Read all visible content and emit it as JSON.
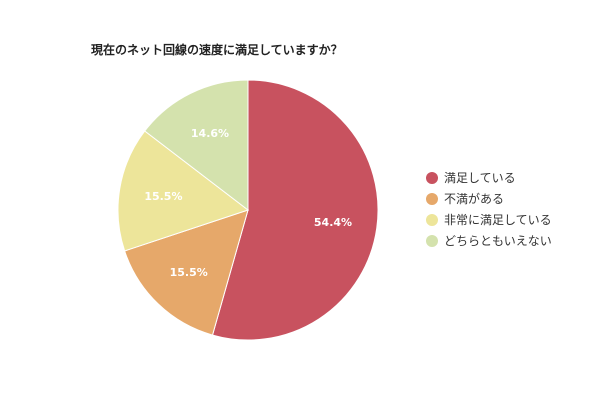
{
  "chart_data": {
    "type": "pie",
    "title": "現在のネット回線の速度に満足していますか？",
    "slices": [
      {
        "label": "満足している",
        "value": 54.4,
        "value_label": "54.4%",
        "color": "#c8525f"
      },
      {
        "label": "不満がある",
        "value": 15.5,
        "value_label": "15.5%",
        "color": "#e6a86a"
      },
      {
        "label": "非常に満足している",
        "value": 15.5,
        "value_label": "15.5%",
        "color": "#ede59a"
      },
      {
        "label": "どちらともいえない",
        "value": 14.6,
        "value_label": "14.6%",
        "color": "#d4e2ad"
      }
    ],
    "direction": "clockwise",
    "start": "top",
    "legend": "right"
  }
}
